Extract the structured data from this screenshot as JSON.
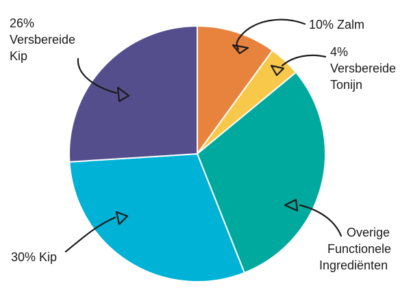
{
  "chart_data": {
    "type": "pie",
    "title": "",
    "slices": [
      {
        "label_lines": [
          "10% Zalm"
        ],
        "value": 10,
        "color": "#E8833E"
      },
      {
        "label_lines": [
          "4%",
          "Versbereide",
          "Tonijn"
        ],
        "value": 4,
        "color": "#F8C84A"
      },
      {
        "label_lines": [
          "Overige",
          "Functionele",
          "Ingrediënten"
        ],
        "value": 30,
        "color": "#00A99D"
      },
      {
        "label_lines": [
          "30% Kip"
        ],
        "value": 30,
        "color": "#00B2D6"
      },
      {
        "label_lines": [
          "26%",
          "Versbereide",
          "Kip"
        ],
        "value": 26,
        "color": "#554E8C"
      }
    ],
    "legend": "none"
  }
}
